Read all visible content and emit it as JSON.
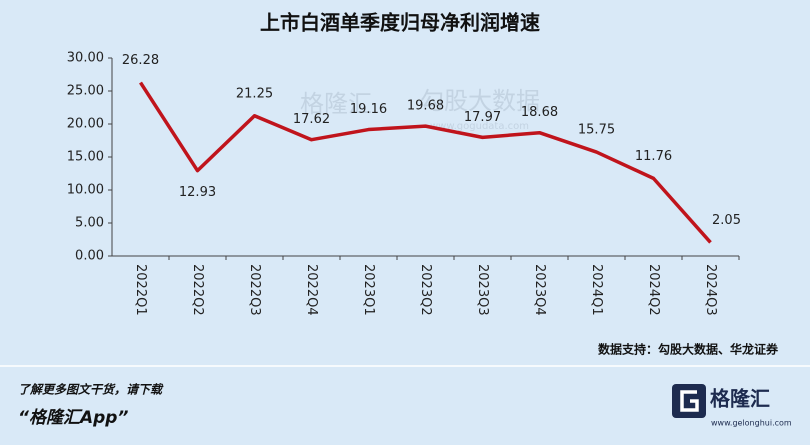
{
  "chart_data": {
    "type": "line",
    "title": "上市白酒单季度归母净利润增速",
    "categories": [
      "2022Q1",
      "2022Q2",
      "2022Q3",
      "2022Q4",
      "2023Q1",
      "2023Q2",
      "2023Q3",
      "2023Q4",
      "2024Q1",
      "2024Q2",
      "2024Q3"
    ],
    "series": [
      {
        "name": "上市白酒单季度归母净利润增速",
        "color": "#c0141c",
        "values": [
          26.28,
          12.93,
          21.25,
          17.62,
          19.16,
          19.68,
          17.97,
          18.68,
          15.75,
          11.76,
          2.05
        ]
      }
    ],
    "ylim": [
      0,
      30
    ],
    "yticks": [
      {
        "value": 0,
        "label": "0.00"
      },
      {
        "value": 5,
        "label": "5.00"
      },
      {
        "value": 10,
        "label": "10.00"
      },
      {
        "value": 15,
        "label": "15.00"
      },
      {
        "value": 20,
        "label": "20.00"
      },
      {
        "value": 25,
        "label": "25.00"
      },
      {
        "value": 30,
        "label": "30.00"
      }
    ],
    "source": "数据支持：勾股大数据、华龙证券",
    "watermarks": [
      "格隆汇",
      "勾股大数据",
      "www.gogudata.com"
    ]
  },
  "footer": {
    "line1": "了解更多图文干货，请下载",
    "line2": "“格隆汇App”",
    "logo": "格隆汇",
    "url": "www.gelonghui.com"
  }
}
